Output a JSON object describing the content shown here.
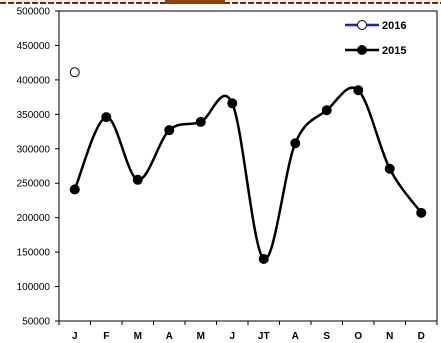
{
  "chart_data": {
    "type": "line",
    "categories": [
      "J",
      "F",
      "M",
      "A",
      "M",
      "J",
      "JT",
      "A",
      "S",
      "O",
      "N",
      "D"
    ],
    "series": [
      {
        "name": "2016",
        "values": [
          411000,
          null,
          null,
          null,
          null,
          null,
          null,
          null,
          null,
          null,
          null,
          null
        ],
        "color": "#1f1fd6",
        "marker": "hollow-circle"
      },
      {
        "name": "2015",
        "values": [
          241000,
          346000,
          255000,
          327000,
          339000,
          366000,
          140000,
          308000,
          356000,
          385000,
          271000,
          207000
        ],
        "color": "#000000",
        "marker": "filled-circle"
      }
    ],
    "yticks": [
      50000,
      100000,
      150000,
      200000,
      250000,
      300000,
      350000,
      400000,
      450000,
      500000
    ],
    "ylim": [
      50000,
      500000
    ],
    "grid": false,
    "smooth": true,
    "legend": "top-right",
    "colors": {
      "frame": "#000000",
      "top_border": "#8b4513"
    }
  }
}
